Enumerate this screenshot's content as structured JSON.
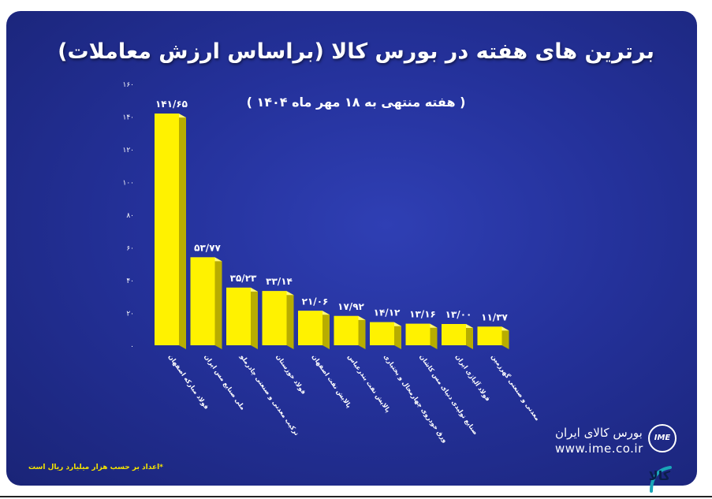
{
  "header": {
    "title": "برترین های هفته در بورس کالا (براساس ارزش معاملات)",
    "subtitle": "( هفته منتهی به ۱۸ مهر ماه ۱۴۰۴ )"
  },
  "footnote": "*اعداد بر حسب هزار میلیارد ریال است",
  "branding": {
    "name": "بورس کالای ایران",
    "url": "www.ime.co.ir",
    "badge": "IME",
    "corner_mark": "کالا خبر"
  },
  "colors": {
    "background": "#24319a",
    "bar_front": "#fff200",
    "bar_side": "#b8ad00",
    "bar_top": "#fff97a",
    "text": "#ffffff",
    "footnote": "#f5e400"
  },
  "chart_data": {
    "type": "bar",
    "title": "برترین های هفته در بورس کالا (براساس ارزش معاملات)",
    "subtitle": "( هفته منتهی به ۱۸ مهر ماه ۱۴۰۴ )",
    "xlabel": "",
    "ylabel": "",
    "ylim": [
      0,
      160
    ],
    "yticks": [
      0,
      20,
      40,
      60,
      80,
      100,
      120,
      140,
      160
    ],
    "ytick_labels": [
      "۰",
      "۲۰",
      "۴۰",
      "۶۰",
      "۸۰",
      "۱۰۰",
      "۱۲۰",
      "۱۴۰",
      "۱۶۰"
    ],
    "grid": false,
    "legend": "none",
    "categories": [
      "فولاد مبارکه اصفهان",
      "ملی صنایع مس ایران",
      "ترکیب معدنی و صنعتی چادرملو",
      "فولاد خوزستان",
      "پالایش نفت اصفهان",
      "پالایش نفت بندرعباس",
      "ورق خودروی چهارمحال و بختیاری",
      "صنایع تولیدی دنیای مس کاشان",
      "فولاد آلیاژی ایران",
      "معدنی و صنعتی گهرزمین"
    ],
    "values": [
      141.65,
      53.77,
      35.23,
      33.14,
      21.06,
      17.92,
      14.12,
      13.16,
      13.0,
      11.37
    ],
    "value_labels": [
      "۱۴۱/۶۵",
      "۵۳/۷۷",
      "۳۵/۲۳",
      "۳۳/۱۴",
      "۲۱/۰۶",
      "۱۷/۹۲",
      "۱۴/۱۲",
      "۱۳/۱۶",
      "۱۳/۰۰",
      "۱۱/۳۷"
    ]
  }
}
